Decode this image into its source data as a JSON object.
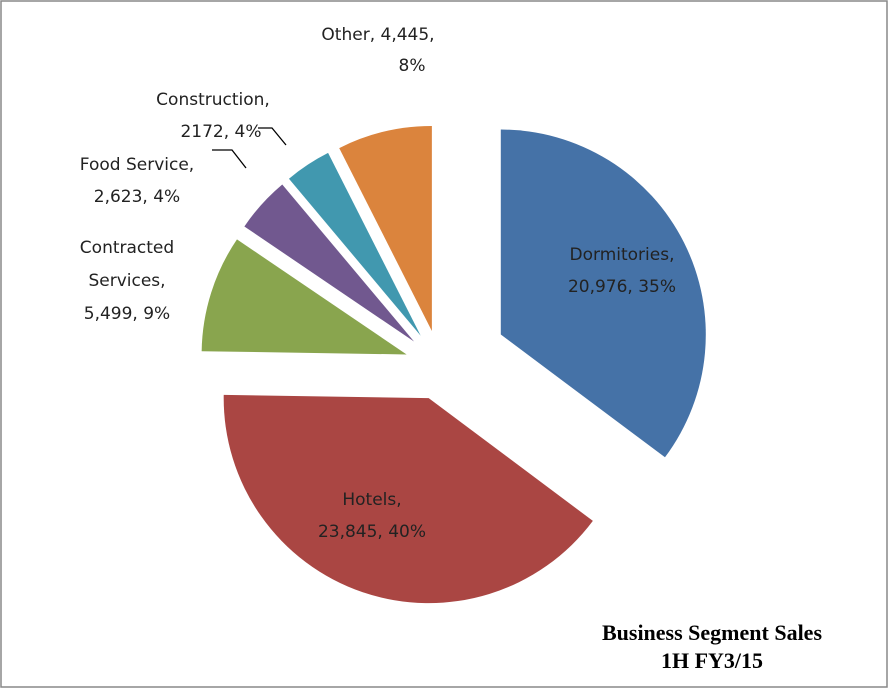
{
  "chart_data": {
    "type": "pie",
    "title": [
      "Business Segment Sales",
      "1H FY3/15"
    ],
    "values": [
      20976,
      23845,
      5499,
      2623,
      2172,
      4445
    ],
    "data_labels": [
      [
        "Dormitories,",
        "20,976, 35%"
      ],
      [
        "Hotels,",
        "23,845, 40%"
      ],
      [
        "Contracted",
        "Services,",
        "5,499, 9%"
      ],
      [
        "Food Service,",
        "2,623, 4%"
      ],
      [
        "Construction,",
        "2172, 4%"
      ],
      [
        "Other, 4,445,",
        "8%"
      ]
    ],
    "colors": [
      "#4572a7",
      "#aa4643",
      "#89a54e",
      "#71588f",
      "#4198af",
      "#db843d"
    ]
  }
}
